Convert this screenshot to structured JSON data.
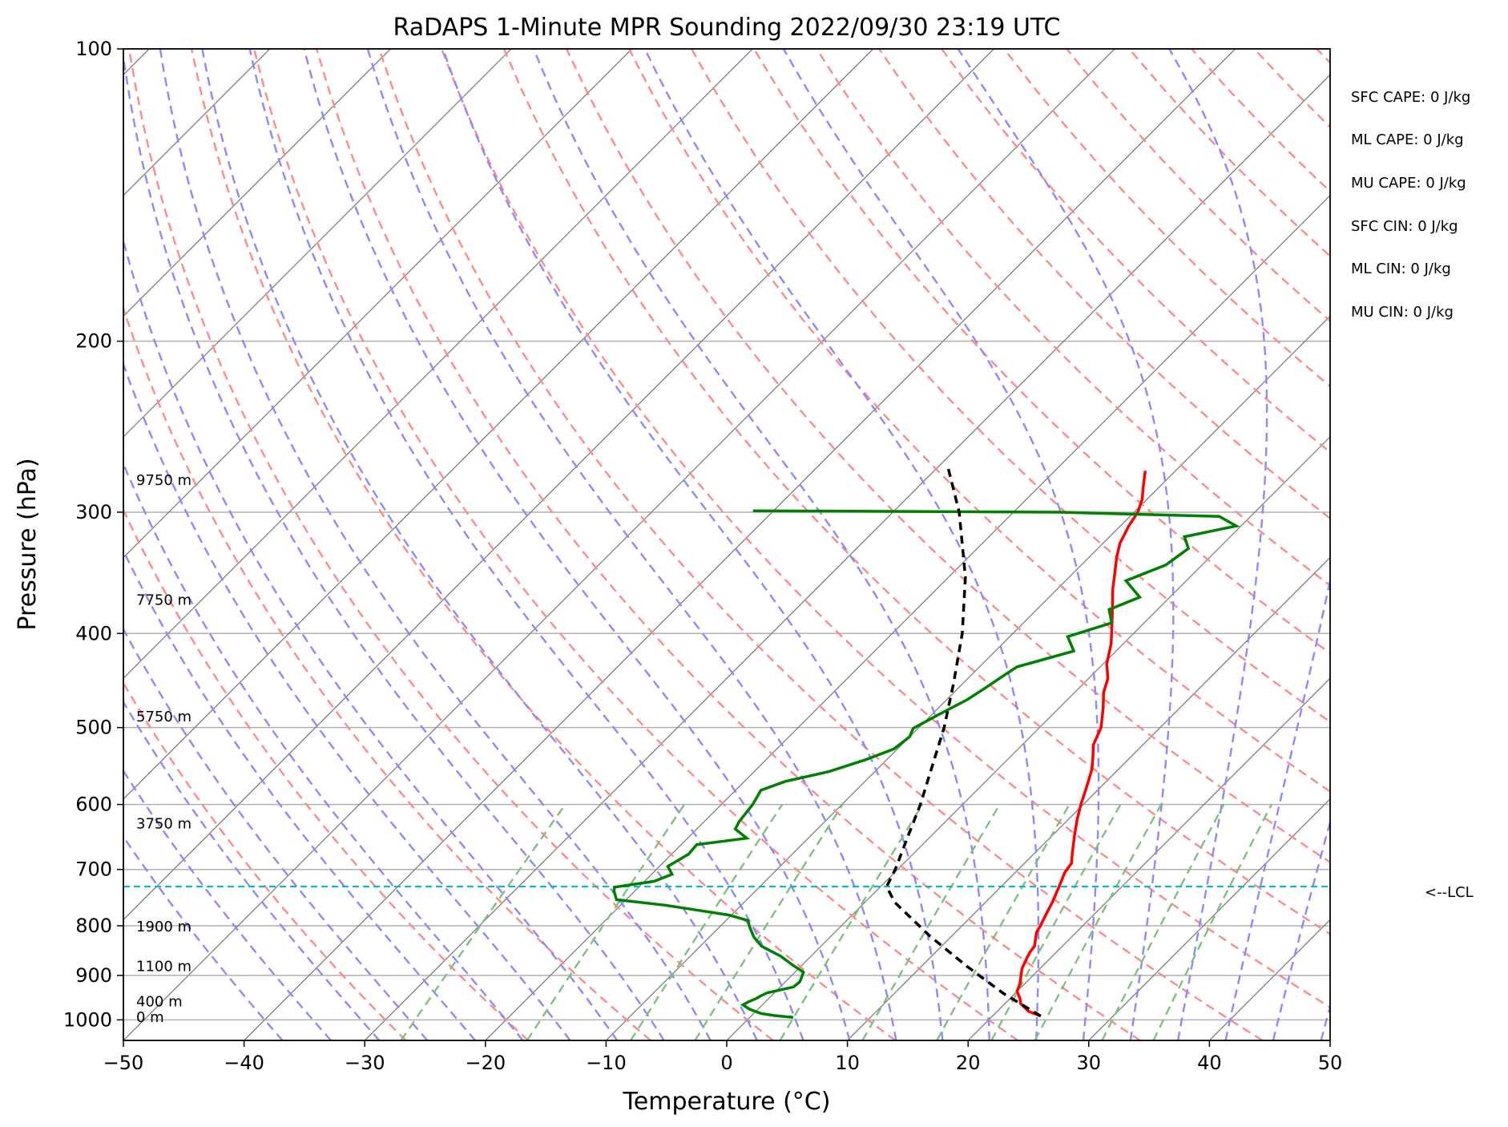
{
  "chart_data": {
    "type": "line",
    "title": "RaDAPS 1-Minute MPR Sounding 2022/09/30 23:19 UTC",
    "xlabel": "Temperature (°C)",
    "ylabel": "Pressure (hPa)",
    "xlim": [
      -50,
      50
    ],
    "ylim": [
      1050,
      100
    ],
    "y_scale": "log",
    "x_ticks": [
      -50,
      -40,
      -30,
      -20,
      -10,
      0,
      10,
      20,
      30,
      40,
      50
    ],
    "x_tick_labels": [
      "−50",
      "−40",
      "−30",
      "−20",
      "−10",
      "0",
      "10",
      "20",
      "30",
      "40",
      "50"
    ],
    "y_ticks": [
      100,
      200,
      300,
      400,
      500,
      600,
      700,
      800,
      900,
      1000
    ],
    "y_tick_labels": [
      "100",
      "200",
      "300",
      "400",
      "500",
      "600",
      "700",
      "800",
      "900",
      "1000"
    ],
    "grid": true,
    "skew": "skew-T log-P",
    "series": [
      {
        "role": "temperature",
        "color": "#ff0000",
        "points": [
          [
            991,
            24.0
          ],
          [
            980,
            22.6
          ],
          [
            962,
            21.3
          ],
          [
            950,
            20.8
          ],
          [
            935,
            20.0
          ],
          [
            918,
            19.6
          ],
          [
            903,
            19.1
          ],
          [
            885,
            18.5
          ],
          [
            866,
            18.1
          ],
          [
            851,
            17.8
          ],
          [
            840,
            17.7
          ],
          [
            826,
            17.2
          ],
          [
            812,
            16.7
          ],
          [
            800,
            16.5
          ],
          [
            778,
            16.0
          ],
          [
            755,
            15.5
          ],
          [
            729,
            14.8
          ],
          [
            705,
            14.1
          ],
          [
            690,
            13.9
          ],
          [
            673,
            13.1
          ],
          [
            645,
            11.8
          ],
          [
            621,
            10.7
          ],
          [
            600,
            9.8
          ],
          [
            575,
            8.8
          ],
          [
            552,
            7.8
          ],
          [
            535,
            6.8
          ],
          [
            521,
            5.9
          ],
          [
            500,
            5.1
          ],
          [
            478,
            3.7
          ],
          [
            460,
            2.4
          ],
          [
            445,
            1.6
          ],
          [
            430,
            0.3
          ],
          [
            410,
            -1.0
          ],
          [
            392,
            -2.5
          ],
          [
            375,
            -4.0
          ],
          [
            360,
            -5.4
          ],
          [
            345,
            -6.7
          ],
          [
            334,
            -7.7
          ],
          [
            323,
            -8.6
          ],
          [
            310,
            -9.3
          ],
          [
            300,
            -9.7
          ],
          [
            291,
            -10.4
          ],
          [
            282,
            -11.4
          ],
          [
            272,
            -12.5
          ]
        ]
      },
      {
        "role": "dewpoint",
        "color": "#008000",
        "points": [
          [
            994,
            3.6
          ],
          [
            990,
            1.9
          ],
          [
            985,
            0.6
          ],
          [
            975,
            -0.7
          ],
          [
            965,
            -1.6
          ],
          [
            958,
            -1.4
          ],
          [
            950,
            -1.0
          ],
          [
            946,
            -0.9
          ],
          [
            938,
            -0.6
          ],
          [
            925,
            1.1
          ],
          [
            914,
            1.2
          ],
          [
            905,
            1.0
          ],
          [
            893,
            0.7
          ],
          [
            880,
            -0.6
          ],
          [
            860,
            -2.5
          ],
          [
            840,
            -4.9
          ],
          [
            822,
            -6.3
          ],
          [
            804,
            -7.4
          ],
          [
            790,
            -8.2
          ],
          [
            780,
            -10.2
          ],
          [
            762,
            -16.3
          ],
          [
            752,
            -20.8
          ],
          [
            737,
            -21.7
          ],
          [
            730,
            -22.0
          ],
          [
            720,
            -19.2
          ],
          [
            708,
            -18.3
          ],
          [
            695,
            -19.3
          ],
          [
            675,
            -18.6
          ],
          [
            660,
            -18.7
          ],
          [
            650,
            -15.1
          ],
          [
            636,
            -16.8
          ],
          [
            625,
            -17.1
          ],
          [
            600,
            -17.4
          ],
          [
            580,
            -17.9
          ],
          [
            568,
            -16.6
          ],
          [
            555,
            -13.8
          ],
          [
            540,
            -11.8
          ],
          [
            526,
            -10.3
          ],
          [
            511,
            -10.0
          ],
          [
            501,
            -10.4
          ],
          [
            486,
            -9.5
          ],
          [
            468,
            -8.3
          ],
          [
            456,
            -7.8
          ],
          [
            445,
            -7.4
          ],
          [
            433,
            -6.9
          ],
          [
            417,
            -3.5
          ],
          [
            403,
            -5.2
          ],
          [
            390,
            -2.7
          ],
          [
            378,
            -4.0
          ],
          [
            367,
            -2.5
          ],
          [
            353,
            -5.0
          ],
          [
            340,
            -3.0
          ],
          [
            327,
            -2.5
          ],
          [
            318,
            -3.8
          ],
          [
            310,
            -0.4
          ],
          [
            303,
            -2.6
          ],
          [
            300,
            -16.2
          ],
          [
            299,
            -41.7
          ]
        ]
      },
      {
        "role": "parcel",
        "color": "#000000",
        "dashed": true,
        "points": [
          [
            991,
            24.0
          ],
          [
            940,
            19.1
          ],
          [
            880,
            13.7
          ],
          [
            820,
            8.2
          ],
          [
            757,
            2.5
          ],
          [
            729,
            0.5
          ],
          [
            700,
            -0.2
          ],
          [
            650,
            -1.8
          ],
          [
            600,
            -3.5
          ],
          [
            550,
            -5.6
          ],
          [
            500,
            -7.9
          ],
          [
            450,
            -10.8
          ],
          [
            400,
            -14.2
          ],
          [
            350,
            -18.6
          ],
          [
            300,
            -24.5
          ],
          [
            270,
            -29.1
          ]
        ]
      }
    ],
    "lcl_pressure_hpa": 729,
    "lcl_label": "<--LCL",
    "height_labels": [
      {
        "p": 997,
        "text": "0 m"
      },
      {
        "p": 961,
        "text": "400 m"
      },
      {
        "p": 884,
        "text": "1100 m"
      },
      {
        "p": 805,
        "text": "1900 m"
      },
      {
        "p": 630,
        "text": "3750 m"
      },
      {
        "p": 489,
        "text": "5750 m"
      },
      {
        "p": 371,
        "text": "7750 m"
      },
      {
        "p": 279,
        "text": "9750 m"
      }
    ],
    "indices": [
      "SFC CAPE: 0 J/kg",
      "ML CAPE: 0 J/kg",
      "MU CAPE: 0 J/kg",
      "SFC CIN: 0 J/kg",
      "ML CIN: 0 J/kg",
      "MU CIN: 0 J/kg"
    ],
    "colors": {
      "isotherm": "#7f7f7f",
      "dry_adiabat": "#ff8a8a",
      "moist_adiabat": "#8a8aff",
      "mixing_ratio": "#7fbf7f",
      "lcl_line": "#00bfbf"
    }
  }
}
